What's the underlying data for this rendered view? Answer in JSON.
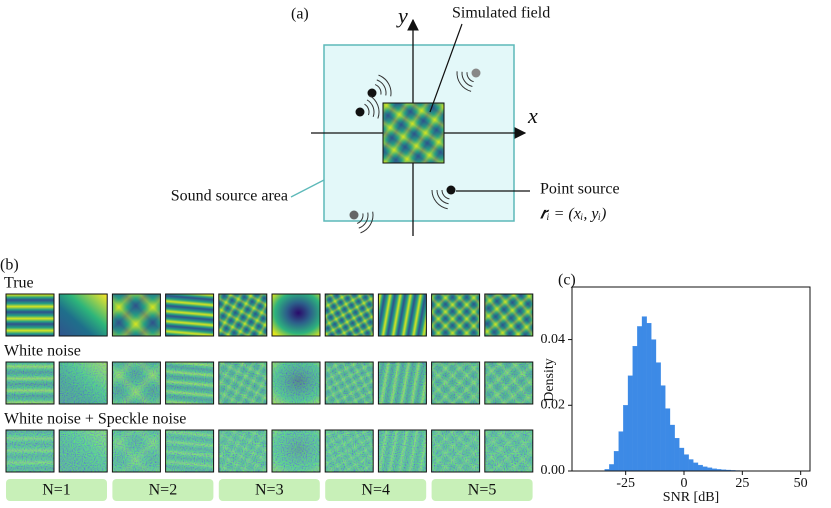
{
  "panel_a": {
    "label": "(a)",
    "y_axis": "y",
    "x_axis": "x",
    "field": "Simulated field",
    "area": "Sound source area",
    "source": "Point source",
    "position": "𝒓ᵢ = (xᵢ, yᵢ)"
  },
  "panel_b": {
    "label": "(b)",
    "rows": [
      "True",
      "White noise",
      "White noise + Speckle noise"
    ],
    "groups": [
      "N=1",
      "N=2",
      "N=3",
      "N=4",
      "N=5"
    ]
  },
  "chart_data": {
    "type": "histogram",
    "label": "(c)",
    "x_label": "SNR [dB]",
    "y_label": "Density",
    "color": "#3d8ae6",
    "bins": [
      -34,
      -32,
      -30,
      -28,
      -26,
      -24,
      -22,
      -20,
      -18,
      -16,
      -14,
      -12,
      -10,
      -8,
      -6,
      -4,
      -2,
      0,
      2,
      4,
      6,
      8,
      10,
      12,
      14,
      16,
      18,
      20,
      22,
      24,
      26,
      28,
      30,
      32,
      34,
      36,
      38,
      40
    ],
    "values": [
      0.0005,
      0.002,
      0.006,
      0.012,
      0.02,
      0.029,
      0.038,
      0.044,
      0.047,
      0.045,
      0.04,
      0.033,
      0.026,
      0.019,
      0.014,
      0.01,
      0.007,
      0.005,
      0.0035,
      0.0025,
      0.0018,
      0.0013,
      0.001,
      0.0007,
      0.0005,
      0.0004,
      0.0003,
      0.0002,
      0.00015,
      0.0001,
      0.0001,
      8e-05,
      5e-05,
      4e-05,
      3e-05,
      2e-05,
      1e-05
    ],
    "xlim": [
      -48,
      54
    ],
    "ylim": [
      0,
      0.056
    ],
    "xticks": [
      -25,
      0,
      25,
      50
    ],
    "yticks": [
      {
        "value": 0,
        "label": "0.00"
      },
      {
        "value": 0.02,
        "label": "0.02"
      },
      {
        "value": 0.04,
        "label": "0.04"
      }
    ]
  }
}
